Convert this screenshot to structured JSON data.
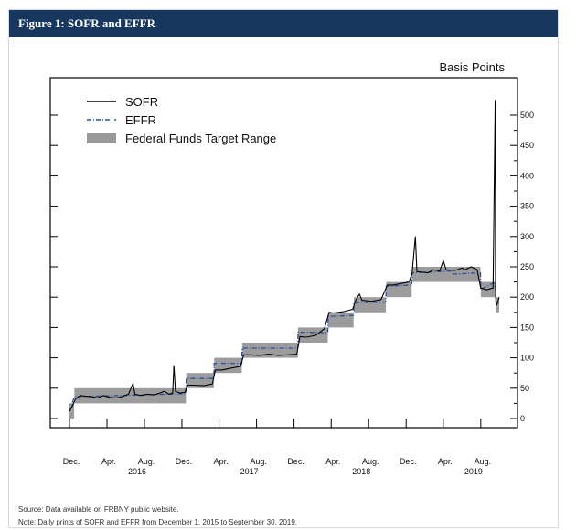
{
  "header": {
    "title": "Figure 1: SOFR and EFFR"
  },
  "chart_data": {
    "type": "line",
    "ylabel": "Basis Points",
    "ylim": [
      0,
      525
    ],
    "y_ticks": [
      0,
      50,
      100,
      150,
      200,
      250,
      300,
      350,
      400,
      450,
      500
    ],
    "x_range": [
      "2015-12-01",
      "2019-09-30"
    ],
    "x_ticks": [
      {
        "date": "2015-12-01",
        "label": "Dec."
      },
      {
        "date": "2016-04-01",
        "label": "Apr."
      },
      {
        "date": "2016-08-01",
        "label": "Aug."
      },
      {
        "date": "2016-12-01",
        "label": "Dec."
      },
      {
        "date": "2017-04-01",
        "label": "Apr."
      },
      {
        "date": "2017-08-01",
        "label": "Aug."
      },
      {
        "date": "2017-12-01",
        "label": "Dec."
      },
      {
        "date": "2018-04-01",
        "label": "Apr."
      },
      {
        "date": "2018-08-01",
        "label": "Aug."
      },
      {
        "date": "2018-12-01",
        "label": "Dec."
      },
      {
        "date": "2019-04-01",
        "label": "Apr."
      },
      {
        "date": "2019-08-01",
        "label": "Aug."
      }
    ],
    "year_labels": [
      {
        "date": "2016-08-01",
        "label": "2016"
      },
      {
        "date": "2017-08-01",
        "label": "2017"
      },
      {
        "date": "2018-08-01",
        "label": "2018"
      },
      {
        "date": "2019-08-01",
        "label": "2019"
      }
    ],
    "legend": {
      "placement": "top-left",
      "items": [
        {
          "label": "SOFR",
          "style": "solid",
          "color": "#000000"
        },
        {
          "label": "EFFR",
          "style": "dash-dot",
          "color": "#2e4f9e"
        },
        {
          "label": "Federal Funds Target Range",
          "style": "band",
          "color": "#999999"
        }
      ]
    },
    "target_range": [
      {
        "start": "2015-12-01",
        "end": "2015-12-16",
        "low": 0,
        "high": 25
      },
      {
        "start": "2015-12-17",
        "end": "2016-12-14",
        "low": 25,
        "high": 50
      },
      {
        "start": "2016-12-15",
        "end": "2017-03-15",
        "low": 50,
        "high": 75
      },
      {
        "start": "2017-03-16",
        "end": "2017-06-14",
        "low": 75,
        "high": 100
      },
      {
        "start": "2017-06-15",
        "end": "2017-12-13",
        "low": 100,
        "high": 125
      },
      {
        "start": "2017-12-14",
        "end": "2018-03-21",
        "low": 125,
        "high": 150
      },
      {
        "start": "2018-03-22",
        "end": "2018-06-13",
        "low": 150,
        "high": 175
      },
      {
        "start": "2018-06-14",
        "end": "2018-09-26",
        "low": 175,
        "high": 200
      },
      {
        "start": "2018-09-27",
        "end": "2018-12-19",
        "low": 200,
        "high": 225
      },
      {
        "start": "2018-12-20",
        "end": "2019-07-31",
        "low": 225,
        "high": 250
      },
      {
        "start": "2019-08-01",
        "end": "2019-09-18",
        "low": 200,
        "high": 225
      },
      {
        "start": "2019-09-19",
        "end": "2019-09-30",
        "low": 175,
        "high": 200
      }
    ],
    "series": [
      {
        "name": "SOFR",
        "points": [
          [
            "2015-12-01",
            12
          ],
          [
            "2015-12-10",
            20
          ],
          [
            "2015-12-20",
            32
          ],
          [
            "2016-01-05",
            38
          ],
          [
            "2016-01-20",
            37
          ],
          [
            "2016-02-10",
            36
          ],
          [
            "2016-03-01",
            34
          ],
          [
            "2016-03-20",
            38
          ],
          [
            "2016-04-10",
            35
          ],
          [
            "2016-05-01",
            34
          ],
          [
            "2016-05-20",
            36
          ],
          [
            "2016-06-10",
            40
          ],
          [
            "2016-06-25",
            58
          ],
          [
            "2016-07-01",
            40
          ],
          [
            "2016-07-20",
            38
          ],
          [
            "2016-08-10",
            40
          ],
          [
            "2016-09-01",
            39
          ],
          [
            "2016-09-20",
            42
          ],
          [
            "2016-10-05",
            45
          ],
          [
            "2016-10-20",
            40
          ],
          [
            "2016-11-01",
            42
          ],
          [
            "2016-11-05",
            88
          ],
          [
            "2016-11-10",
            45
          ],
          [
            "2016-11-25",
            42
          ],
          [
            "2016-12-10",
            43
          ],
          [
            "2016-12-20",
            55
          ],
          [
            "2017-01-10",
            55
          ],
          [
            "2017-02-10",
            54
          ],
          [
            "2017-03-10",
            57
          ],
          [
            "2017-03-20",
            80
          ],
          [
            "2017-04-10",
            80
          ],
          [
            "2017-05-10",
            83
          ],
          [
            "2017-06-10",
            86
          ],
          [
            "2017-06-20",
            105
          ],
          [
            "2017-07-10",
            105
          ],
          [
            "2017-08-10",
            104
          ],
          [
            "2017-09-10",
            106
          ],
          [
            "2017-10-10",
            104
          ],
          [
            "2017-11-10",
            105
          ],
          [
            "2017-12-10",
            106
          ],
          [
            "2017-12-20",
            135
          ],
          [
            "2018-01-10",
            134
          ],
          [
            "2018-02-10",
            137
          ],
          [
            "2018-03-10",
            148
          ],
          [
            "2018-03-25",
            175
          ],
          [
            "2018-04-10",
            174
          ],
          [
            "2018-05-10",
            176
          ],
          [
            "2018-06-10",
            180
          ],
          [
            "2018-06-20",
            195
          ],
          [
            "2018-07-02",
            205
          ],
          [
            "2018-07-10",
            195
          ],
          [
            "2018-08-10",
            193
          ],
          [
            "2018-09-10",
            196
          ],
          [
            "2018-10-01",
            220
          ],
          [
            "2018-10-20",
            220
          ],
          [
            "2018-11-10",
            222
          ],
          [
            "2018-12-10",
            225
          ],
          [
            "2018-12-20",
            238
          ],
          [
            "2018-12-31",
            300
          ],
          [
            "2019-01-05",
            242
          ],
          [
            "2019-02-10",
            240
          ],
          [
            "2019-03-01",
            245
          ],
          [
            "2019-03-20",
            243
          ],
          [
            "2019-04-01",
            260
          ],
          [
            "2019-04-10",
            245
          ],
          [
            "2019-05-10",
            244
          ],
          [
            "2019-06-01",
            248
          ],
          [
            "2019-06-10",
            245
          ],
          [
            "2019-07-01",
            250
          ],
          [
            "2019-07-20",
            245
          ],
          [
            "2019-08-01",
            215
          ],
          [
            "2019-08-20",
            212
          ],
          [
            "2019-09-10",
            215
          ],
          [
            "2019-09-17",
            525
          ],
          [
            "2019-09-18",
            215
          ],
          [
            "2019-09-20",
            185
          ],
          [
            "2019-09-30",
            200
          ]
        ]
      },
      {
        "name": "EFFR",
        "points": [
          [
            "2015-12-01",
            12
          ],
          [
            "2015-12-17",
            36
          ],
          [
            "2016-12-14",
            41
          ],
          [
            "2016-12-15",
            66
          ],
          [
            "2017-03-15",
            66
          ],
          [
            "2017-03-16",
            91
          ],
          [
            "2017-06-14",
            91
          ],
          [
            "2017-06-15",
            116
          ],
          [
            "2017-12-13",
            116
          ],
          [
            "2017-12-14",
            142
          ],
          [
            "2018-03-21",
            142
          ],
          [
            "2018-03-22",
            168
          ],
          [
            "2018-06-13",
            170
          ],
          [
            "2018-06-14",
            191
          ],
          [
            "2018-09-26",
            192
          ],
          [
            "2018-09-27",
            218
          ],
          [
            "2018-12-19",
            220
          ],
          [
            "2018-12-20",
            240
          ],
          [
            "2019-04-30",
            243
          ],
          [
            "2019-05-01",
            238
          ],
          [
            "2019-07-31",
            240
          ],
          [
            "2019-08-01",
            213
          ],
          [
            "2019-09-18",
            225
          ],
          [
            "2019-09-19",
            190
          ],
          [
            "2019-09-30",
            190
          ]
        ]
      }
    ]
  },
  "notes": {
    "source": "Source: Data available on FRBNY public website.",
    "note": "Note: Daily prints of SOFR and EFFR from December 1, 2015 to September 30, 2019."
  }
}
